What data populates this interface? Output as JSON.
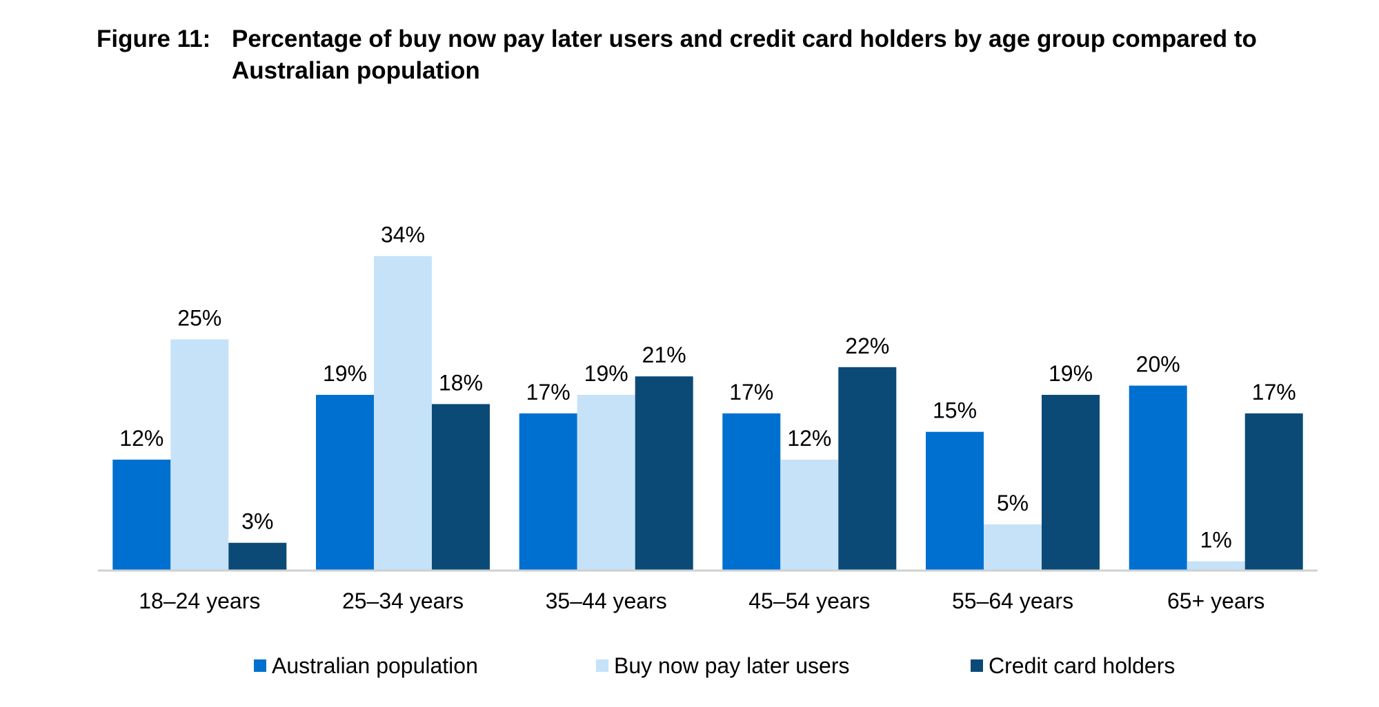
{
  "figure": {
    "label": "Figure 11:",
    "title": "Percentage of buy now pay later users and credit card holders by age group compared to Australian population"
  },
  "colors": {
    "australian_population": "#0070d0",
    "bnpl_users": "#c5e2f8",
    "credit_card_holders": "#0b4a77",
    "axis": "#d0d0d0"
  },
  "chart_data": {
    "type": "bar",
    "title": "Percentage of buy now pay later users and credit card holders by age group compared to Australian population",
    "xlabel": "",
    "ylabel": "",
    "ylim": [
      0,
      38
    ],
    "grid": false,
    "legend_position": "bottom",
    "categories": [
      "18–24 years",
      "25–34 years",
      "35–44 years",
      "45–54 years",
      "55–64 years",
      "65+ years"
    ],
    "series": [
      {
        "name": "Australian population",
        "values": [
          12,
          19,
          17,
          17,
          15,
          20
        ],
        "labels": [
          "12%",
          "19%",
          "17%",
          "17%",
          "15%",
          "20%"
        ]
      },
      {
        "name": "Buy now pay later users",
        "values": [
          25,
          34,
          19,
          12,
          5,
          1
        ],
        "labels": [
          "25%",
          "34%",
          "19%",
          "12%",
          "5%",
          "1%"
        ]
      },
      {
        "name": "Credit card holders",
        "values": [
          3,
          18,
          21,
          22,
          19,
          17
        ],
        "labels": [
          "3%",
          "18%",
          "21%",
          "22%",
          "19%",
          "17%"
        ]
      }
    ]
  }
}
